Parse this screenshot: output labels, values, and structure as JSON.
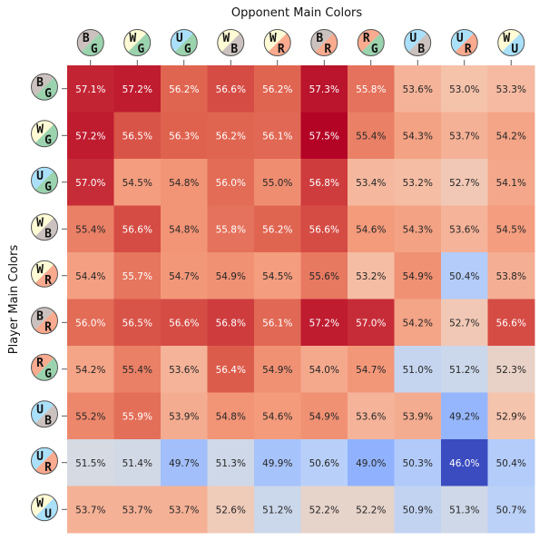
{
  "chart_data": {
    "type": "heatmap",
    "title": "",
    "xlabel": "Opponent Main Colors",
    "ylabel": "Player Main Colors",
    "columns": [
      "BG",
      "WG",
      "UG",
      "WB",
      "WR",
      "BR",
      "RG",
      "UB",
      "UR",
      "WU"
    ],
    "rows": [
      "BG",
      "WG",
      "UG",
      "WB",
      "WR",
      "BR",
      "RG",
      "UB",
      "UR",
      "WU"
    ],
    "value_format": "percent, 1 decimal",
    "colormap": "coolwarm",
    "color_range": [
      46.0,
      57.5
    ],
    "values": [
      [
        57.1,
        57.2,
        56.2,
        56.6,
        56.2,
        57.3,
        55.8,
        53.6,
        53.0,
        53.3
      ],
      [
        57.2,
        56.5,
        56.3,
        56.2,
        56.1,
        57.5,
        55.4,
        54.3,
        53.7,
        54.2
      ],
      [
        57.0,
        54.5,
        54.8,
        56.0,
        55.0,
        56.8,
        53.4,
        53.2,
        52.7,
        54.1
      ],
      [
        55.4,
        56.6,
        54.8,
        55.8,
        56.2,
        56.6,
        54.6,
        54.3,
        53.6,
        54.5
      ],
      [
        54.4,
        55.7,
        54.7,
        54.9,
        54.5,
        55.6,
        53.2,
        54.9,
        50.4,
        53.8
      ],
      [
        56.0,
        56.5,
        56.6,
        56.8,
        56.1,
        57.2,
        57.0,
        54.2,
        52.7,
        56.6
      ],
      [
        54.2,
        55.4,
        53.6,
        56.4,
        54.9,
        54.0,
        54.7,
        51.0,
        51.2,
        52.3
      ],
      [
        55.2,
        55.9,
        53.9,
        54.8,
        54.6,
        54.9,
        53.6,
        53.9,
        49.2,
        52.9
      ],
      [
        51.5,
        51.4,
        49.7,
        51.3,
        49.9,
        50.6,
        49.0,
        50.3,
        46.0,
        50.4
      ],
      [
        53.7,
        53.7,
        53.7,
        52.6,
        51.2,
        52.2,
        52.2,
        50.9,
        51.3,
        50.7
      ]
    ]
  },
  "mana_colors": {
    "W": "#fffbd5",
    "U": "#aae0fa",
    "B": "#cbc2bf",
    "R": "#f9aa8f",
    "G": "#9bd3ae"
  }
}
